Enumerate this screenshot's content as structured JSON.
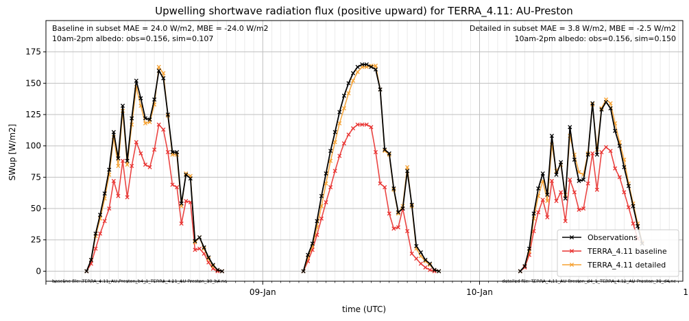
{
  "chart_data": {
    "type": "line",
    "title": "Upwelling shortwave radiation flux (positive upward) for TERRA_4.11: AU-Preston",
    "xlabel": "time (UTC)",
    "ylabel": "SWup [W/m2]",
    "ylim": [
      -8,
      200
    ],
    "xlim_hours": [
      -24,
      46.5
    ],
    "x_ticks": [
      {
        "hour": 0,
        "label": "09-Jan"
      },
      {
        "hour": 24,
        "label": "10-Jan"
      },
      {
        "hour": 48,
        "label": "11-Jan"
      }
    ],
    "y_ticks": [
      0,
      25,
      50,
      75,
      100,
      125,
      150,
      175
    ],
    "grid": true,
    "legend_position": "lower-right",
    "annotations": {
      "top_left": [
        "Baseline in subset MAE = 24.0 W/m2, MBE = -24.0 W/m2",
        "10am-2pm albedo: obs=0.156, sim=0.107"
      ],
      "top_right": [
        "Detailed in subset MAE = 3.8 W/m2, MBE = -2.5 W/m2",
        "10am-2pm albedo: obs=0.156, sim=0.150"
      ],
      "bottom_left": "baseline file: TERRA_4.11_AU-Preston_b4_1_TERRA_4.11_AU-Preston_30_b4.nc",
      "bottom_right": "detailed file: TERRA_4.11_AU-Preston_d4_1_TERRA_4.11_AU-Preston_30_d4.nc"
    },
    "series": [
      {
        "name": "Observations",
        "color": "#000000",
        "segments": [
          {
            "start_hour": -19.5,
            "values": [
              0,
              9,
              30,
              45,
              62,
              81,
              111,
              90,
              132,
              88,
              122,
              152,
              138,
              122,
              121,
              137,
              160,
              154,
              125,
              95,
              95,
              54,
              77,
              74,
              24,
              27,
              19,
              11,
              5,
              1,
              0
            ]
          },
          {
            "start_hour": 4.5,
            "values": [
              0,
              13,
              22,
              40,
              60,
              78,
              96,
              111,
              127,
              140,
              150,
              158,
              163,
              165,
              165,
              163,
              161,
              145,
              97,
              94,
              66,
              47,
              50,
              80,
              53,
              20,
              15,
              9,
              6,
              1,
              0
            ]
          },
          {
            "start_hour": 28.5,
            "values": [
              0,
              4,
              18,
              46,
              66,
              78,
              61,
              108,
              77,
              87,
              58,
              115,
              89,
              72,
              73,
              93,
              134,
              93,
              129,
              135,
              130,
              112,
              100,
              83,
              68,
              52,
              36,
              22
            ]
          }
        ]
      },
      {
        "name": "TERRA_4.11 baseline",
        "color": "#e8302e",
        "segments": [
          {
            "start_hour": -19.5,
            "values": [
              0,
              6,
              18,
              30,
              40,
              50,
              72,
              60,
              88,
              59,
              84,
              103,
              94,
              85,
              83,
              97,
              117,
              113,
              95,
              69,
              67,
              38,
              56,
              55,
              17,
              18,
              14,
              7,
              2,
              0,
              0
            ]
          },
          {
            "start_hour": 4.5,
            "values": [
              0,
              8,
              17,
              29,
              42,
              55,
              67,
              80,
              92,
              102,
              109,
              114,
              117,
              117,
              117,
              115,
              95,
              70,
              67,
              46,
              34,
              35,
              50,
              32,
              14,
              10,
              6,
              3,
              1,
              0
            ]
          },
          {
            "start_hour": 28.5,
            "values": [
              0,
              3,
              13,
              32,
              47,
              57,
              43,
              72,
              56,
              63,
              40,
              73,
              63,
              49,
              50,
              70,
              94,
              65,
              95,
              99,
              96,
              82,
              75,
              63,
              51,
              38,
              26
            ]
          }
        ]
      },
      {
        "name": "TERRA_4.11 detailed",
        "color": "#f5a030",
        "segments": [
          {
            "start_hour": -19.5,
            "values": [
              0,
              9,
              28,
              42,
              58,
              77,
              107,
              84,
              128,
              85,
              117,
              147,
              132,
              118,
              119,
              133,
              163,
              158,
              124,
              93,
              93,
              52,
              78,
              76,
              23,
              27,
              18,
              10,
              4,
              1,
              0
            ]
          },
          {
            "start_hour": 4.5,
            "values": [
              0,
              11,
              20,
              35,
              52,
              70,
              88,
              103,
              118,
              130,
              142,
              152,
              159,
              163,
              163,
              164,
              164,
              145,
              96,
              93,
              65,
              46,
              52,
              83,
              52,
              18,
              12,
              8,
              5,
              1,
              0
            ]
          },
          {
            "start_hour": 28.5,
            "values": [
              0,
              4,
              16,
              42,
              60,
              72,
              56,
              101,
              80,
              85,
              61,
              108,
              93,
              79,
              77,
              94,
              133,
              97,
              130,
              137,
              134,
              118,
              103,
              89,
              70,
              54,
              38,
              23
            ]
          }
        ]
      }
    ]
  }
}
